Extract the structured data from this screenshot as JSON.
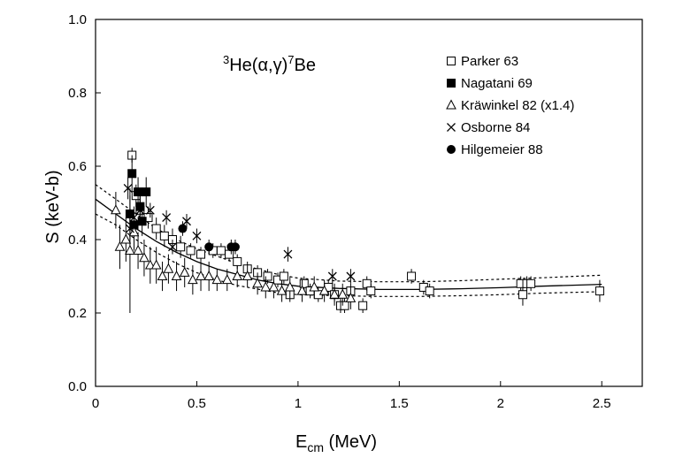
{
  "chart_data": {
    "type": "scatter",
    "title": "",
    "annotation": {
      "sup1": "3",
      "base1": "He(α,γ)",
      "sup2": "7",
      "base2": "Be"
    },
    "xlabel": {
      "main": "E",
      "sub": "cm",
      "unit": " (MeV)"
    },
    "ylabel": "S (keV-b)",
    "xlim": [
      0,
      2.7
    ],
    "ylim": [
      0,
      1.0
    ],
    "xticks": [
      0,
      0.5,
      1,
      1.5,
      2,
      2.5
    ],
    "xtick_labels": [
      "0",
      "0.5",
      "1",
      "1.5",
      "2",
      "2.5"
    ],
    "yticks": [
      0,
      0.2,
      0.4,
      0.6,
      0.8,
      1.0
    ],
    "ytick_labels": [
      "0.0",
      "0.2",
      "0.4",
      "0.6",
      "0.8",
      "1.0"
    ],
    "legend_position": "top-right",
    "series": [
      {
        "name": "Parker 63",
        "marker": "open-square",
        "points": [
          [
            0.18,
            0.63,
            0.02
          ],
          [
            0.2,
            0.52,
            0.03
          ],
          [
            0.22,
            0.48,
            0.03
          ],
          [
            0.26,
            0.46,
            0.03
          ],
          [
            0.3,
            0.43,
            0.03
          ],
          [
            0.34,
            0.41,
            0.03
          ],
          [
            0.38,
            0.4,
            0.03
          ],
          [
            0.42,
            0.38,
            0.03
          ],
          [
            0.47,
            0.37,
            0.02
          ],
          [
            0.52,
            0.36,
            0.02
          ],
          [
            0.58,
            0.37,
            0.02
          ],
          [
            0.62,
            0.37,
            0.02
          ],
          [
            0.66,
            0.36,
            0.02
          ],
          [
            0.7,
            0.34,
            0.02
          ],
          [
            0.75,
            0.32,
            0.02
          ],
          [
            0.8,
            0.31,
            0.02
          ],
          [
            0.85,
            0.3,
            0.02
          ],
          [
            0.9,
            0.29,
            0.02
          ],
          [
            0.93,
            0.3,
            0.02
          ],
          [
            0.96,
            0.25,
            0.02
          ],
          [
            1.03,
            0.28,
            0.02
          ],
          [
            1.06,
            0.26,
            0.02
          ],
          [
            1.1,
            0.25,
            0.02
          ],
          [
            1.15,
            0.27,
            0.02
          ],
          [
            1.18,
            0.25,
            0.02
          ],
          [
            1.21,
            0.22,
            0.02
          ],
          [
            1.23,
            0.22,
            0.02
          ],
          [
            1.26,
            0.26,
            0.02
          ],
          [
            1.32,
            0.22,
            0.02
          ],
          [
            1.34,
            0.28,
            0.02
          ],
          [
            1.36,
            0.26,
            0.02
          ],
          [
            1.56,
            0.3,
            0.02
          ],
          [
            1.62,
            0.27,
            0.02
          ],
          [
            1.65,
            0.26,
            0.02
          ],
          [
            2.1,
            0.28,
            0.02
          ],
          [
            2.11,
            0.25,
            0.03
          ],
          [
            2.13,
            0.28,
            0.02
          ],
          [
            2.15,
            0.28,
            0.02
          ],
          [
            2.49,
            0.26,
            0.03
          ]
        ]
      },
      {
        "name": "Nagatani 69",
        "marker": "filled-square",
        "points": [
          [
            0.17,
            0.47,
            0.05
          ],
          [
            0.18,
            0.58,
            0.05
          ],
          [
            0.19,
            0.44,
            0.05
          ],
          [
            0.21,
            0.53,
            0.04
          ],
          [
            0.22,
            0.49,
            0.04
          ],
          [
            0.23,
            0.45,
            0.04
          ],
          [
            0.25,
            0.53,
            0.04
          ]
        ]
      },
      {
        "name": "Kräwinkel 82 (x1.4)",
        "marker": "open-triangle",
        "points": [
          [
            0.1,
            0.48,
            0.05
          ],
          [
            0.12,
            0.38,
            0.06
          ],
          [
            0.15,
            0.4,
            0.06
          ],
          [
            0.17,
            0.37,
            0.17
          ],
          [
            0.19,
            0.42,
            0.05
          ],
          [
            0.21,
            0.37,
            0.05
          ],
          [
            0.24,
            0.35,
            0.05
          ],
          [
            0.27,
            0.33,
            0.05
          ],
          [
            0.3,
            0.33,
            0.05
          ],
          [
            0.33,
            0.3,
            0.04
          ],
          [
            0.36,
            0.32,
            0.04
          ],
          [
            0.4,
            0.3,
            0.04
          ],
          [
            0.44,
            0.31,
            0.04
          ],
          [
            0.48,
            0.29,
            0.04
          ],
          [
            0.52,
            0.3,
            0.04
          ],
          [
            0.56,
            0.3,
            0.04
          ],
          [
            0.6,
            0.29,
            0.03
          ],
          [
            0.65,
            0.29,
            0.03
          ],
          [
            0.7,
            0.3,
            0.03
          ],
          [
            0.75,
            0.3,
            0.03
          ],
          [
            0.8,
            0.28,
            0.03
          ],
          [
            0.84,
            0.27,
            0.03
          ],
          [
            0.88,
            0.27,
            0.03
          ],
          [
            0.92,
            0.26,
            0.03
          ],
          [
            0.96,
            0.27,
            0.03
          ],
          [
            1.02,
            0.26,
            0.03
          ],
          [
            1.08,
            0.27,
            0.03
          ],
          [
            1.13,
            0.26,
            0.03
          ],
          [
            1.18,
            0.25,
            0.03
          ],
          [
            1.22,
            0.25,
            0.03
          ],
          [
            1.26,
            0.24,
            0.03
          ]
        ]
      },
      {
        "name": "Osborne 84",
        "marker": "cross",
        "points": [
          [
            0.16,
            0.54,
            0.03
          ],
          [
            0.17,
            0.43,
            0.03
          ],
          [
            0.19,
            0.46,
            0.03
          ],
          [
            0.22,
            0.48,
            0.03
          ],
          [
            0.27,
            0.48,
            0.02
          ],
          [
            0.35,
            0.46,
            0.02
          ],
          [
            0.38,
            0.38,
            0.02
          ],
          [
            0.45,
            0.45,
            0.02
          ],
          [
            0.5,
            0.41,
            0.02
          ],
          [
            0.95,
            0.36,
            0.02
          ],
          [
            1.17,
            0.3,
            0.02
          ],
          [
            1.26,
            0.3,
            0.02
          ]
        ]
      },
      {
        "name": "Hilgemeier 88",
        "marker": "filled-circle",
        "points": [
          [
            0.43,
            0.43,
            0.02
          ],
          [
            0.56,
            0.38,
            0.02
          ],
          [
            0.67,
            0.38,
            0.02
          ],
          [
            0.69,
            0.38,
            0.02
          ]
        ]
      }
    ],
    "fit_curve": [
      [
        0,
        0.51
      ],
      [
        0.1,
        0.47
      ],
      [
        0.2,
        0.43
      ],
      [
        0.3,
        0.395
      ],
      [
        0.4,
        0.365
      ],
      [
        0.5,
        0.34
      ],
      [
        0.6,
        0.32
      ],
      [
        0.7,
        0.305
      ],
      [
        0.8,
        0.29
      ],
      [
        0.9,
        0.28
      ],
      [
        1.0,
        0.273
      ],
      [
        1.2,
        0.267
      ],
      [
        1.4,
        0.264
      ],
      [
        1.6,
        0.264
      ],
      [
        1.8,
        0.266
      ],
      [
        2.0,
        0.269
      ],
      [
        2.2,
        0.273
      ],
      [
        2.5,
        0.278
      ]
    ],
    "upper_band": [
      [
        0,
        0.55
      ],
      [
        0.1,
        0.51
      ],
      [
        0.2,
        0.47
      ],
      [
        0.3,
        0.43
      ],
      [
        0.4,
        0.4
      ],
      [
        0.5,
        0.375
      ],
      [
        0.6,
        0.355
      ],
      [
        0.7,
        0.335
      ],
      [
        0.8,
        0.32
      ],
      [
        0.9,
        0.305
      ],
      [
        1.0,
        0.295
      ],
      [
        1.2,
        0.287
      ],
      [
        1.4,
        0.285
      ],
      [
        1.6,
        0.285
      ],
      [
        1.8,
        0.288
      ],
      [
        2.0,
        0.292
      ],
      [
        2.2,
        0.296
      ],
      [
        2.5,
        0.303
      ]
    ],
    "lower_band": [
      [
        0,
        0.47
      ],
      [
        0.1,
        0.44
      ],
      [
        0.2,
        0.4
      ],
      [
        0.3,
        0.365
      ],
      [
        0.4,
        0.335
      ],
      [
        0.5,
        0.31
      ],
      [
        0.6,
        0.29
      ],
      [
        0.7,
        0.275
      ],
      [
        0.8,
        0.265
      ],
      [
        0.9,
        0.255
      ],
      [
        1.0,
        0.25
      ],
      [
        1.2,
        0.247
      ],
      [
        1.4,
        0.245
      ],
      [
        1.6,
        0.245
      ],
      [
        1.8,
        0.247
      ],
      [
        2.0,
        0.25
      ],
      [
        2.2,
        0.254
      ],
      [
        2.5,
        0.258
      ]
    ]
  }
}
